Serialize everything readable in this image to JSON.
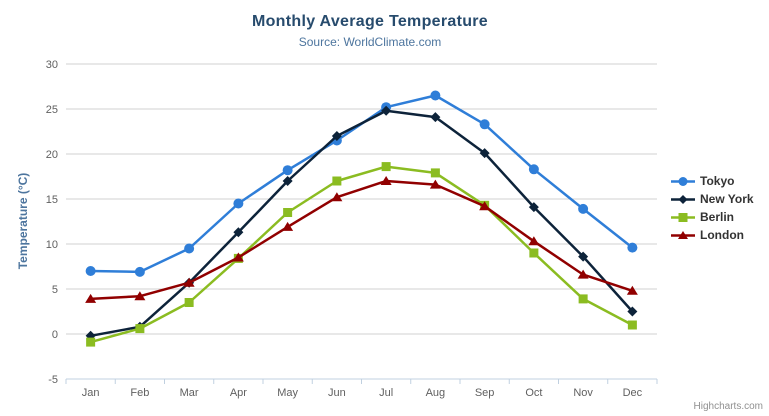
{
  "credits": {
    "label": "Highcharts.com"
  },
  "menu": {
    "icon": "hamburger-icon"
  },
  "chart_data": {
    "type": "line",
    "title": "Monthly Average Temperature",
    "subtitle": "Source: WorldClimate.com",
    "categories": [
      "Jan",
      "Feb",
      "Mar",
      "Apr",
      "May",
      "Jun",
      "Jul",
      "Aug",
      "Sep",
      "Oct",
      "Nov",
      "Dec"
    ],
    "series": [
      {
        "name": "Tokyo",
        "color": "#2f7ed8",
        "marker": "circle",
        "values": [
          7.0,
          6.9,
          9.5,
          14.5,
          18.2,
          21.5,
          25.2,
          26.5,
          23.3,
          18.3,
          13.9,
          9.6
        ]
      },
      {
        "name": "New York",
        "color": "#0d233a",
        "marker": "diamond",
        "values": [
          -0.2,
          0.8,
          5.7,
          11.3,
          17.0,
          22.0,
          24.8,
          24.1,
          20.1,
          14.1,
          8.6,
          2.5
        ]
      },
      {
        "name": "Berlin",
        "color": "#8bbc21",
        "marker": "square",
        "values": [
          -0.9,
          0.6,
          3.5,
          8.4,
          13.5,
          17.0,
          18.6,
          17.9,
          14.3,
          9.0,
          3.9,
          1.0
        ]
      },
      {
        "name": "London",
        "color": "#910000",
        "marker": "triangle",
        "values": [
          3.9,
          4.2,
          5.7,
          8.5,
          11.9,
          15.2,
          17.0,
          16.6,
          14.2,
          10.3,
          6.6,
          4.8
        ]
      }
    ],
    "xlabel": "",
    "ylabel": "Temperature (°C)",
    "ylim": [
      -5,
      30
    ],
    "ytick_step": 5,
    "grid": true,
    "legend_position": "right",
    "colors": {
      "title": "#274b6d",
      "subtitle": "#4d759e",
      "axis_title": "#4d759e",
      "tick_label": "#606060",
      "grid_line": "#d2d2d2",
      "axis_line": "#c0d0e0",
      "legend_text": "#333333",
      "credits": "#909090",
      "menu_icon": "#666666"
    }
  }
}
